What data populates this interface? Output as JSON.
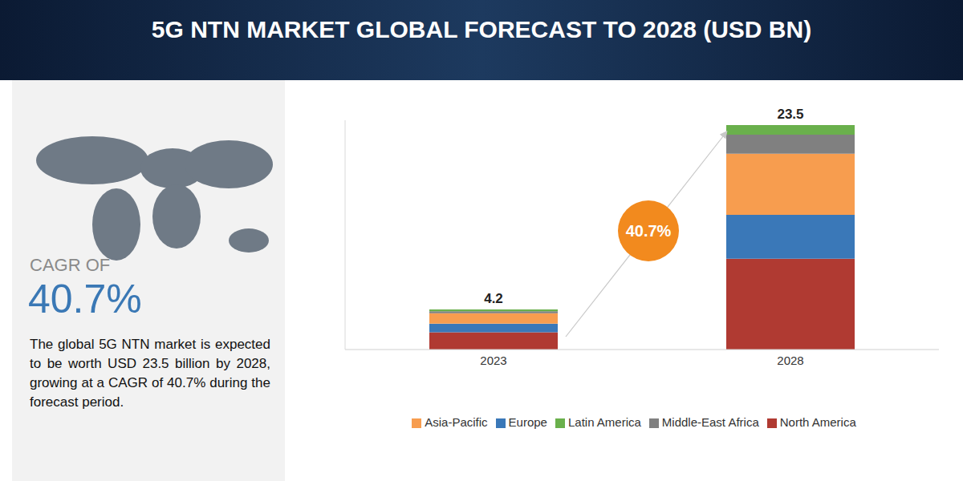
{
  "chart_data": {
    "type": "bar",
    "title": "5G NTN MARKET GLOBAL FORECAST TO 2028 (USD BN)",
    "cagr_heading": "CAGR OF",
    "cagr": "40.7%",
    "description": "The global 5G NTN market is expected to be worth USD 23.5 billion by 2028, growing at a CAGR of 40.7% during the forecast period.",
    "categories": [
      "2023",
      "2028"
    ],
    "totals": [
      4.2,
      23.5
    ],
    "series": [
      {
        "name": "North America",
        "color": "#b03a32",
        "values": [
          1.8,
          9.5
        ]
      },
      {
        "name": "Europe",
        "color": "#3a78b8",
        "values": [
          0.9,
          4.6
        ]
      },
      {
        "name": "Asia-Pacific",
        "color": "#f79d4f",
        "values": [
          1.1,
          6.4
        ]
      },
      {
        "name": "Middle-East Africa",
        "color": "#808080",
        "values": [
          0.2,
          2.0
        ]
      },
      {
        "name": "Latin America",
        "color": "#6ab04c",
        "values": [
          0.2,
          1.0
        ]
      }
    ],
    "stacked": true,
    "ylim": [
      0,
      24
    ],
    "yticks": [],
    "tick_labels": "x",
    "legend": "bottom"
  }
}
